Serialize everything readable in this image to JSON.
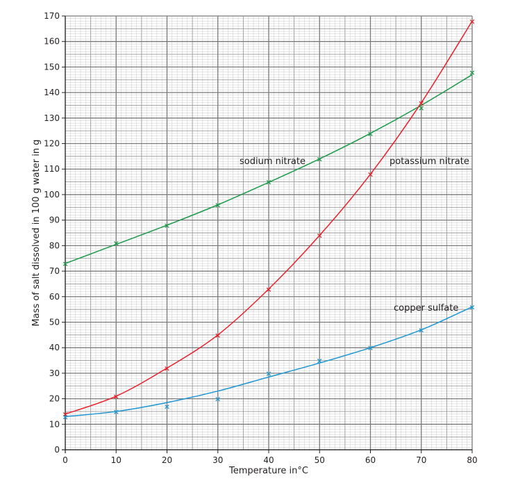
{
  "chart_data": {
    "type": "line",
    "title": "",
    "xlabel": "Temperature in°C",
    "ylabel": "Mass of salt dissolved in 100 g water in g",
    "xlim": [
      0,
      80
    ],
    "ylim": [
      0,
      170
    ],
    "xticks": [
      0,
      10,
      20,
      30,
      40,
      50,
      60,
      70,
      80
    ],
    "yticks": [
      0,
      10,
      20,
      30,
      40,
      50,
      60,
      70,
      80,
      90,
      100,
      110,
      120,
      130,
      140,
      150,
      160,
      170
    ],
    "grid": true,
    "marker": "×",
    "series": [
      {
        "name": "sodium nitrate",
        "color": "#1a9a48",
        "x": [
          0,
          10,
          20,
          30,
          40,
          50,
          60,
          70,
          80
        ],
        "values": [
          73,
          81,
          88,
          96,
          105,
          114,
          124,
          134,
          148
        ],
        "curve": [
          [
            0,
            73
          ],
          [
            10,
            80.5
          ],
          [
            20,
            88
          ],
          [
            30,
            96
          ],
          [
            40,
            104.8
          ],
          [
            50,
            114
          ],
          [
            60,
            124
          ],
          [
            70,
            135
          ],
          [
            80,
            147
          ]
        ]
      },
      {
        "name": "potassium nitrate",
        "color": "#e8202a",
        "x": [
          0,
          10,
          20,
          30,
          40,
          50,
          60,
          70,
          80
        ],
        "values": [
          14,
          21,
          32,
          45,
          63,
          84,
          108,
          136,
          168
        ],
        "curve": [
          [
            0,
            14
          ],
          [
            10,
            21
          ],
          [
            20,
            32
          ],
          [
            30,
            45
          ],
          [
            40,
            63
          ],
          [
            50,
            84
          ],
          [
            60,
            108
          ],
          [
            70,
            136
          ],
          [
            80,
            168
          ]
        ]
      },
      {
        "name": "copper sulfate",
        "color": "#1b96d3",
        "x": [
          0,
          10,
          20,
          30,
          40,
          50,
          60,
          70,
          80
        ],
        "values": [
          13,
          15,
          17,
          20,
          30,
          35,
          40,
          47,
          56
        ],
        "curve": [
          [
            0,
            13
          ],
          [
            10,
            15
          ],
          [
            20,
            18.5
          ],
          [
            30,
            23
          ],
          [
            40,
            28.5
          ],
          [
            50,
            34
          ],
          [
            60,
            40
          ],
          [
            70,
            47
          ],
          [
            80,
            56
          ]
        ]
      }
    ]
  }
}
